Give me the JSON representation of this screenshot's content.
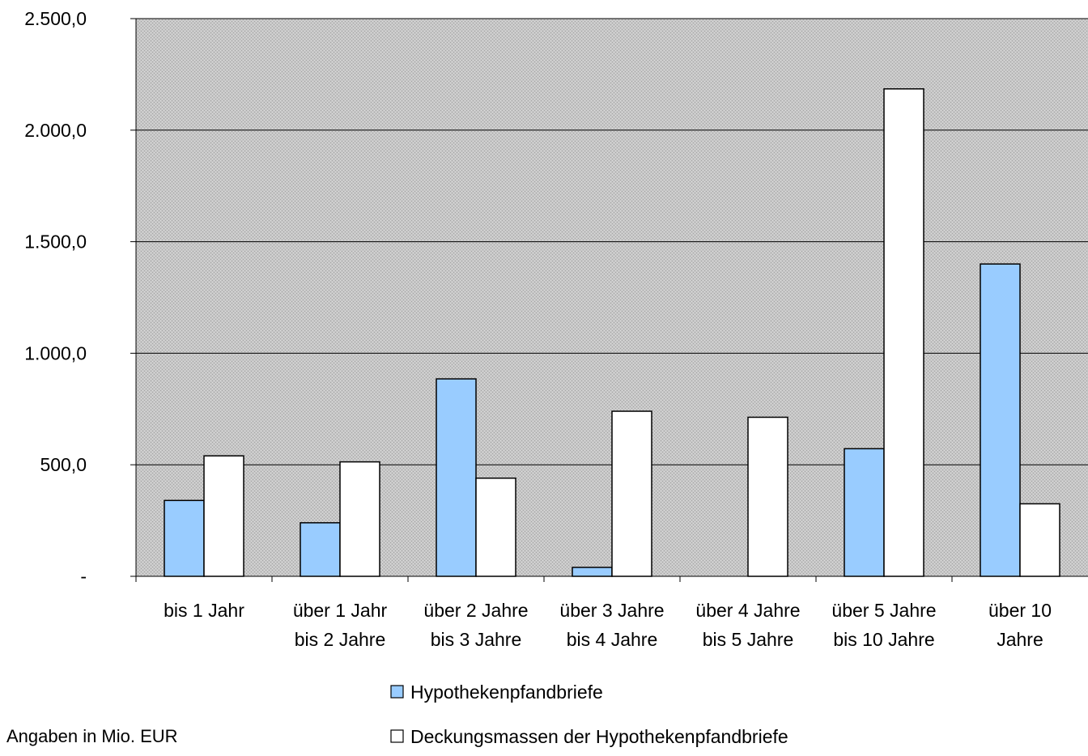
{
  "chart_data": {
    "type": "bar",
    "categories": [
      [
        "bis 1 Jahr"
      ],
      [
        "über 1 Jahr",
        "bis 2 Jahre"
      ],
      [
        "über 2 Jahre",
        "bis 3 Jahre"
      ],
      [
        "über 3 Jahre",
        "bis 4 Jahre"
      ],
      [
        "über 4 Jahre",
        "bis 5 Jahre"
      ],
      [
        "über 5 Jahre",
        "bis 10 Jahre"
      ],
      [
        "über 10",
        "Jahre"
      ]
    ],
    "series": [
      {
        "name": "Hypothekenpfandbriefe",
        "color": "#99ccff",
        "values": [
          340,
          240,
          885,
          40,
          0,
          572,
          1400
        ]
      },
      {
        "name": "Deckungsmassen der Hypothekenpfandbriefe",
        "color": "#ffffff",
        "values": [
          540,
          513,
          440,
          740,
          713,
          2185,
          325
        ]
      }
    ],
    "ylim": [
      0,
      2500
    ],
    "yticks": [
      {
        "value": 0,
        "label": "-"
      },
      {
        "value": 500,
        "label": "500,0"
      },
      {
        "value": 1000,
        "label": "1.000,0"
      },
      {
        "value": 1500,
        "label": "1.500,0"
      },
      {
        "value": 2000,
        "label": "2.000,0"
      },
      {
        "value": 2500,
        "label": "2.500,0"
      }
    ],
    "grid": true,
    "plot_background": "hatched gray",
    "legend_placement": "bottom"
  },
  "footnote": "Angaben in Mio. EUR"
}
